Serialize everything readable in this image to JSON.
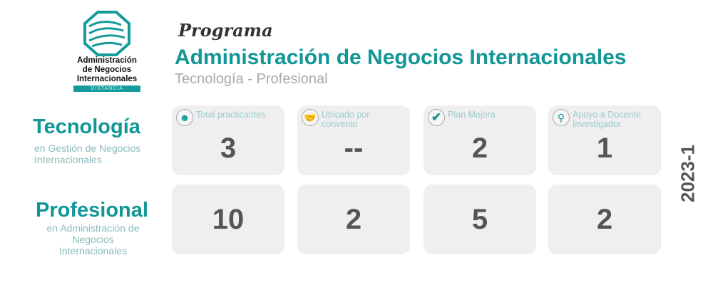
{
  "logo": {
    "lines": [
      "Administración",
      "de Negocios",
      "Internacionales"
    ],
    "tag": "DISTANCIA"
  },
  "header": {
    "kicker": "Programa",
    "title": "Administración de Negocios Internacionales",
    "subtitle": "Tecnología - Profesional"
  },
  "accent": "#129696",
  "columns": [
    {
      "label": "Total practicantes",
      "icon": "person-icon"
    },
    {
      "label": "Ubicado por convenio",
      "icon": "handshake-icon"
    },
    {
      "label": "Plan Mejora",
      "icon": "check-icon"
    },
    {
      "label": "Apoyo a Docente Investigador",
      "icon": "search-icon"
    }
  ],
  "rows": [
    {
      "title": "Tecnología",
      "subtitle": "en Gestión de Negocios Internacionales",
      "values": [
        "3",
        "--",
        "2",
        "1"
      ]
    },
    {
      "title": "Profesional",
      "subtitle": "en Administración de Negocios Internacionales",
      "values": [
        "10",
        "2",
        "5",
        "2"
      ]
    }
  ],
  "period": "2023-1"
}
